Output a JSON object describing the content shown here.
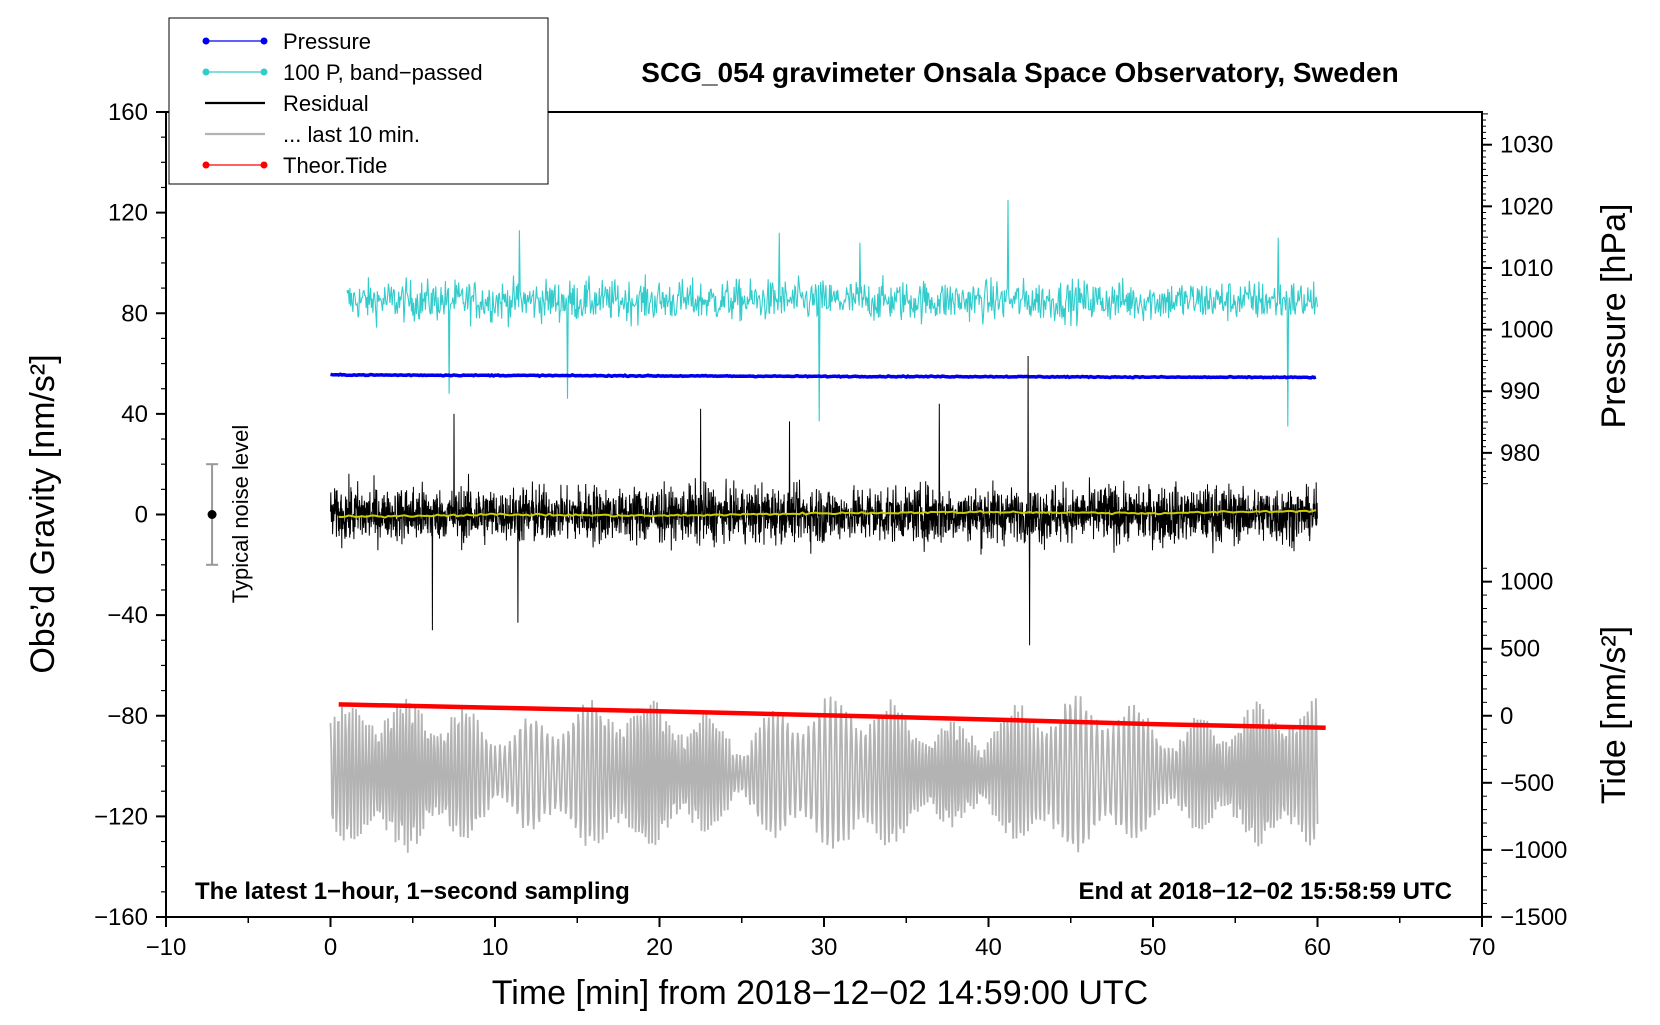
{
  "chart_data": {
    "type": "line",
    "title": "SCG_054 gravimeter Onsala Space Observatory, Sweden",
    "xlabel": "Time [min] from 2018−12−02 14:59:00 UTC",
    "ylabel_left": "Obs’d Gravity [nm/s²]",
    "ylabel_right_top": "Pressure [hPa]",
    "ylabel_right_bottom": "Tide [nm/s²]",
    "xlim": [
      -10,
      70
    ],
    "ylim": [
      -160,
      160
    ],
    "x_ticks": [
      "−10",
      "0",
      "10",
      "20",
      "30",
      "40",
      "50",
      "60",
      "70"
    ],
    "y_ticks_left": [
      "160",
      "120",
      "80",
      "40",
      "0",
      "−40",
      "−80",
      "−120",
      "−160"
    ],
    "pressure_axis": {
      "ticks": [
        "1030",
        "1020",
        "1010",
        "1000",
        "990",
        "980"
      ],
      "values": [
        1030,
        1020,
        1010,
        1000,
        990,
        980
      ],
      "gravity_at_980": 24.5,
      "gravity_per_hpa": 2.45
    },
    "tide_axis": {
      "ticks": [
        "1000",
        "500",
        "0",
        "−500",
        "−1000",
        "−1500"
      ],
      "values": [
        1000,
        500,
        0,
        -500,
        -1000,
        -1500
      ],
      "gravity_at_0": -80,
      "gravity_per_unit": 0.0533
    },
    "legend": [
      {
        "label": "Pressure",
        "color": "#0000ee",
        "style": "line-dot"
      },
      {
        "label": "100 P, band−passed",
        "color": "#33cccc",
        "style": "line-dot"
      },
      {
        "label": "Residual",
        "color": "#000000",
        "style": "line"
      },
      {
        "label": "... last 10 min.",
        "color": "#b3b3b3",
        "style": "line"
      },
      {
        "label": "Theor.Tide",
        "color": "#ff0000",
        "style": "line-dot"
      }
    ],
    "series": [
      {
        "name": "Pressure",
        "type": "line",
        "x": [
          0,
          10,
          20,
          30,
          40,
          50,
          60
        ],
        "values": [
          55.5,
          55.3,
          55.1,
          54.9,
          54.8,
          54.6,
          54.5
        ]
      },
      {
        "name": "100 P, band-passed",
        "type": "noise",
        "x_range": [
          1,
          60
        ],
        "center": 85,
        "amplitude": 14,
        "spikes": [
          [
            41.2,
            125
          ],
          [
            27.3,
            112
          ],
          [
            11.5,
            113
          ],
          [
            32.2,
            108
          ],
          [
            57.6,
            110
          ],
          [
            29.7,
            37
          ],
          [
            7.2,
            48
          ],
          [
            58.2,
            35
          ],
          [
            14.4,
            46
          ]
        ]
      },
      {
        "name": "Residual",
        "type": "noise",
        "x_range": [
          0,
          60
        ],
        "center": 0,
        "amplitude": 18,
        "spikes": [
          [
            42.4,
            63
          ],
          [
            42.5,
            -52
          ],
          [
            7.5,
            40
          ],
          [
            22.5,
            42
          ],
          [
            27.9,
            37
          ],
          [
            37,
            44
          ],
          [
            11.4,
            -43
          ],
          [
            6.2,
            -46
          ]
        ]
      },
      {
        "name": "Residual (smoothed)",
        "type": "line",
        "color": "#cccc00",
        "x": [
          0,
          10,
          20,
          30,
          40,
          50,
          60
        ],
        "values": [
          -1,
          0,
          -0.5,
          0.5,
          1,
          0.5,
          1.5
        ]
      },
      {
        "name": "... last 10 min.",
        "type": "oscillation",
        "x_range": [
          0,
          60
        ],
        "center": -103,
        "amplitude": 25
      },
      {
        "name": "Theor.Tide",
        "type": "line",
        "x": [
          0.5,
          10,
          20,
          30,
          40,
          50,
          60.5
        ],
        "values": [
          -75.5,
          -76.8,
          -78.2,
          -79.8,
          -81.5,
          -83.3,
          -84.8
        ]
      }
    ],
    "noise_marker": {
      "x": -7.2,
      "center": 0,
      "error": 20,
      "label": "Typical noise level"
    },
    "annotations": {
      "bottom_left": "The latest 1−hour, 1−second sampling",
      "bottom_right": "End at 2018−12−02 15:58:59 UTC"
    }
  }
}
